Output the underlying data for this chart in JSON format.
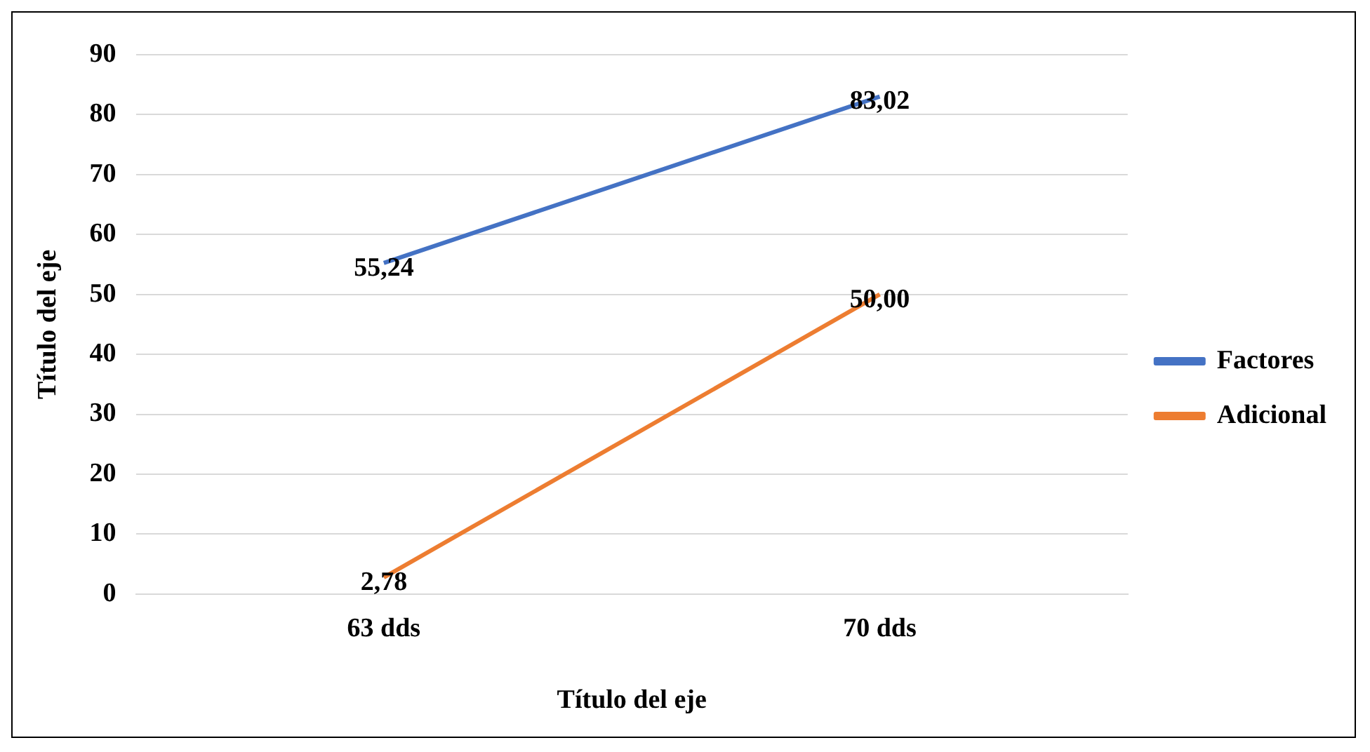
{
  "chart_data": {
    "type": "line",
    "xlabel": "Título del eje",
    "ylabel": "Título del eje",
    "categories": [
      "63 dds",
      "70 dds"
    ],
    "series": [
      {
        "name": "Factores",
        "color": "#4472c4",
        "values": [
          55.24,
          83.02
        ],
        "value_labels": [
          "55,24",
          "83,02"
        ]
      },
      {
        "name": "Adicional",
        "color": "#ed7d31",
        "values": [
          2.78,
          50.0
        ],
        "value_labels": [
          "2,78",
          "50,00"
        ]
      }
    ],
    "ylim": [
      0,
      90
    ],
    "yticks": [
      0,
      10,
      20,
      30,
      40,
      50,
      60,
      70,
      80,
      90
    ],
    "grid": "y",
    "legend": "right",
    "marker": "none",
    "line_style": "solid"
  }
}
